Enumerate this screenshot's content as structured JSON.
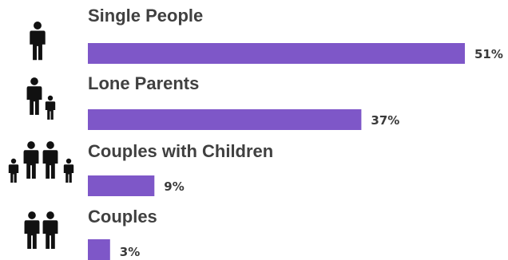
{
  "chart_data": {
    "type": "bar",
    "orientation": "horizontal",
    "categories": [
      "Single People",
      "Lone Parents",
      "Couples with Children",
      "Couples"
    ],
    "values": [
      51,
      37,
      9,
      3
    ],
    "value_labels": [
      "51%",
      "37%",
      "9%",
      "3%"
    ],
    "unit": "%",
    "xlim": [
      0,
      55
    ],
    "bar_color": "#7e57c8",
    "icon_color": "#111111",
    "icons": [
      "single-person-icon",
      "adult-and-child-icon",
      "family-of-four-icon",
      "two-adults-icon"
    ],
    "grid": false,
    "legend": "none"
  }
}
